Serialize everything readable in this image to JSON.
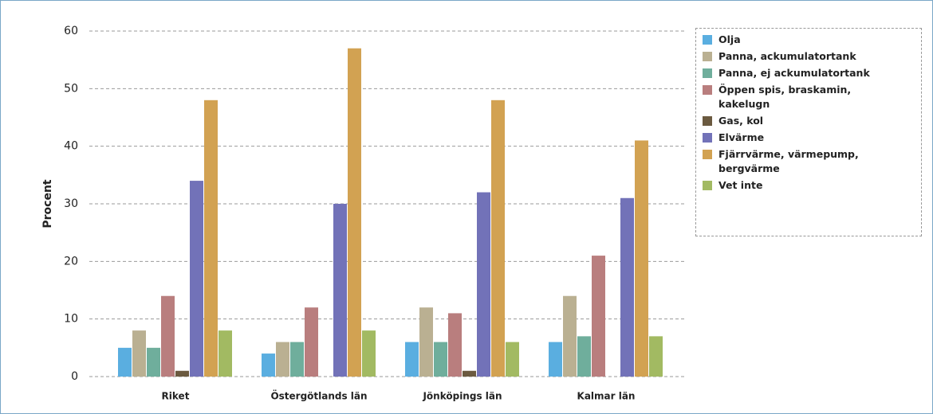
{
  "chart_data": {
    "type": "bar",
    "y_label": "Procent",
    "categories": [
      "Riket",
      "Östergötlands län",
      "Jönköpings län",
      "Kalmar län"
    ],
    "ylim": [
      0,
      60
    ],
    "yticks": [
      0,
      10,
      20,
      30,
      40,
      50,
      60
    ],
    "grid": true,
    "series": [
      {
        "name": "Olja",
        "color": "#5aaee0",
        "values": [
          5,
          4,
          6,
          6
        ]
      },
      {
        "name": "Panna, ackumulatortank",
        "color": "#bab092",
        "values": [
          8,
          6,
          12,
          14
        ]
      },
      {
        "name": "Panna, ej ackumulatortank",
        "color": "#6fae9c",
        "values": [
          5,
          6,
          6,
          7
        ]
      },
      {
        "name": "Öppen spis, braskamin, kakelugn",
        "color": "#b97e7e",
        "values": [
          14,
          12,
          11,
          21
        ]
      },
      {
        "name": "Gas, kol",
        "color": "#6b5a40",
        "values": [
          1,
          0,
          1,
          0
        ]
      },
      {
        "name": "Elvärme",
        "color": "#7272b8",
        "values": [
          34,
          30,
          32,
          31
        ]
      },
      {
        "name": "Fjärrvärme, värmepump, bergvärme",
        "color": "#d2a252",
        "values": [
          48,
          57,
          48,
          41
        ]
      },
      {
        "name": "Vet inte",
        "color": "#a2ba62",
        "values": [
          8,
          8,
          6,
          7
        ]
      }
    ]
  }
}
